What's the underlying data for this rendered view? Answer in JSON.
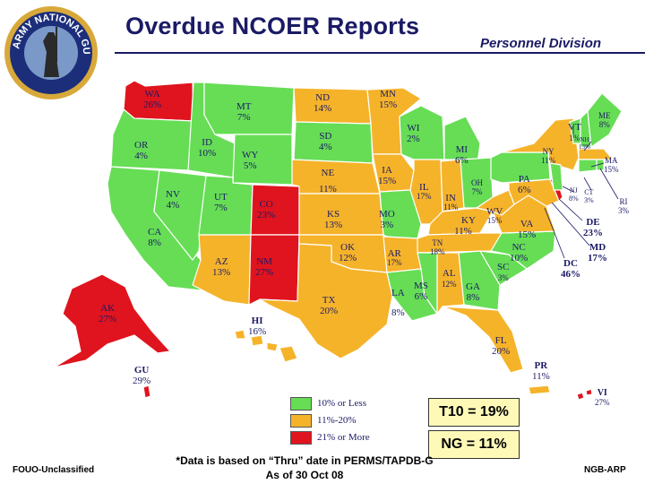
{
  "title": "Overdue NCOER Reports",
  "division": "Personnel Division",
  "seal_text": "ARMY NATIONAL GUARD",
  "colors": {
    "low": "#66dd55",
    "mid": "#f5b32a",
    "high": "#e0141e",
    "text": "#1a1a66"
  },
  "legend": [
    {
      "label": "10% or Less",
      "color": "#66dd55"
    },
    {
      "label": "11%-20%",
      "color": "#f5b32a"
    },
    {
      "label": "21% or More",
      "color": "#e0141e"
    }
  ],
  "states": [
    {
      "ab": "WA",
      "pct": "26%"
    },
    {
      "ab": "OR",
      "pct": "4%"
    },
    {
      "ab": "CA",
      "pct": "8%"
    },
    {
      "ab": "ID",
      "pct": "10%"
    },
    {
      "ab": "NV",
      "pct": "4%"
    },
    {
      "ab": "MT",
      "pct": "7%"
    },
    {
      "ab": "WY",
      "pct": "5%"
    },
    {
      "ab": "UT",
      "pct": "7%"
    },
    {
      "ab": "AZ",
      "pct": "13%"
    },
    {
      "ab": "CO",
      "pct": "23%"
    },
    {
      "ab": "NM",
      "pct": "27%"
    },
    {
      "ab": "ND",
      "pct": "14%"
    },
    {
      "ab": "SD",
      "pct": "4%"
    },
    {
      "ab": "NE",
      "pct": "11%"
    },
    {
      "ab": "KS",
      "pct": "13%"
    },
    {
      "ab": "OK",
      "pct": "12%"
    },
    {
      "ab": "TX",
      "pct": "20%"
    },
    {
      "ab": "MN",
      "pct": "15%"
    },
    {
      "ab": "IA",
      "pct": "15%"
    },
    {
      "ab": "MO",
      "pct": "3%"
    },
    {
      "ab": "AR",
      "pct": "17%"
    },
    {
      "ab": "LA",
      "pct": "8%"
    },
    {
      "ab": "WI",
      "pct": "2%"
    },
    {
      "ab": "IL",
      "pct": "17%"
    },
    {
      "ab": "MI",
      "pct": "6%"
    },
    {
      "ab": "IN",
      "pct": "11%"
    },
    {
      "ab": "OH",
      "pct": "7%"
    },
    {
      "ab": "KY",
      "pct": "11%"
    },
    {
      "ab": "TN",
      "pct": "18%"
    },
    {
      "ab": "MS",
      "pct": "6%"
    },
    {
      "ab": "AL",
      "pct": "12%"
    },
    {
      "ab": "GA",
      "pct": "8%"
    },
    {
      "ab": "FL",
      "pct": "20%"
    },
    {
      "ab": "SC",
      "pct": "3%"
    },
    {
      "ab": "NC",
      "pct": "10%"
    },
    {
      "ab": "VA",
      "pct": "15%"
    },
    {
      "ab": "WV",
      "pct": "15%"
    },
    {
      "ab": "PA",
      "pct": "6%"
    },
    {
      "ab": "NY",
      "pct": "11%"
    },
    {
      "ab": "VT",
      "pct": "1%"
    },
    {
      "ab": "NH",
      "pct": "13%"
    },
    {
      "ab": "ME",
      "pct": "8%"
    },
    {
      "ab": "MA",
      "pct": "15%"
    },
    {
      "ab": "RI",
      "pct": "3%"
    },
    {
      "ab": "CT",
      "pct": "3%"
    },
    {
      "ab": "NJ",
      "pct": "8%"
    },
    {
      "ab": "DE",
      "pct": "23%"
    },
    {
      "ab": "MD",
      "pct": "17%"
    },
    {
      "ab": "DC",
      "pct": "46%"
    },
    {
      "ab": "AK",
      "pct": "27%"
    },
    {
      "ab": "HI",
      "pct": "16%"
    },
    {
      "ab": "GU",
      "pct": "29%"
    },
    {
      "ab": "PR",
      "pct": "11%"
    },
    {
      "ab": "VI",
      "pct": "27%"
    }
  ],
  "t10": "T10 = 19%",
  "ng": "NG = 11%",
  "note_line1": "*Data is based on “Thru” date in PERMS/TAPDB-G",
  "note_line2": "As of  30 Oct 08",
  "footer_left": "FOUO-Unclassified",
  "footer_right": "NGB-ARP"
}
